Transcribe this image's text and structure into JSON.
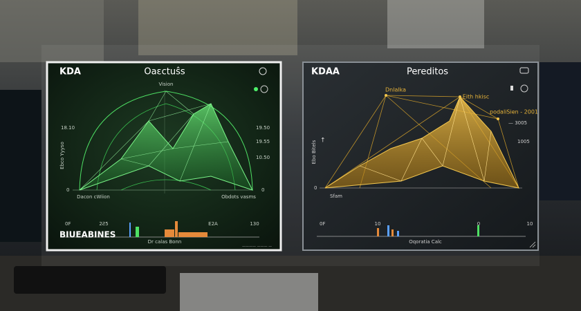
{
  "left_panel": {
    "title": "KDA",
    "heading": "Oaεctuŝs",
    "peak_label": "Vision",
    "y_labels_left": [
      "18.10",
      "0"
    ],
    "y_labels_right": [
      "19.50",
      "19.55",
      "10.50",
      "0"
    ],
    "y_axis_title": "Ebco Yyyso",
    "x_label_left": "Dacon cWiion",
    "x_label_right": "Obdots vasms",
    "bottom_ticks": [
      "0F",
      "2Ƨ5",
      "E2A",
      "130"
    ],
    "footer_title": "BIUEABINES",
    "footer_caption": "Dr calas Bonn",
    "footer_note": "———— ——— —"
  },
  "right_panel": {
    "title": "KDAA",
    "heading": "Pereditos",
    "annotations": [
      "Dnlalka",
      "Eith hkisc",
      "podaliSien - 2001",
      "— 3005",
      "1005"
    ],
    "y_axis_title": "Ebo Bitels",
    "x_label": "Sfam",
    "bottom_ticks": [
      "0F",
      "10",
      "0",
      "10"
    ],
    "footer_caption": "Oqoratia Calc"
  }
}
